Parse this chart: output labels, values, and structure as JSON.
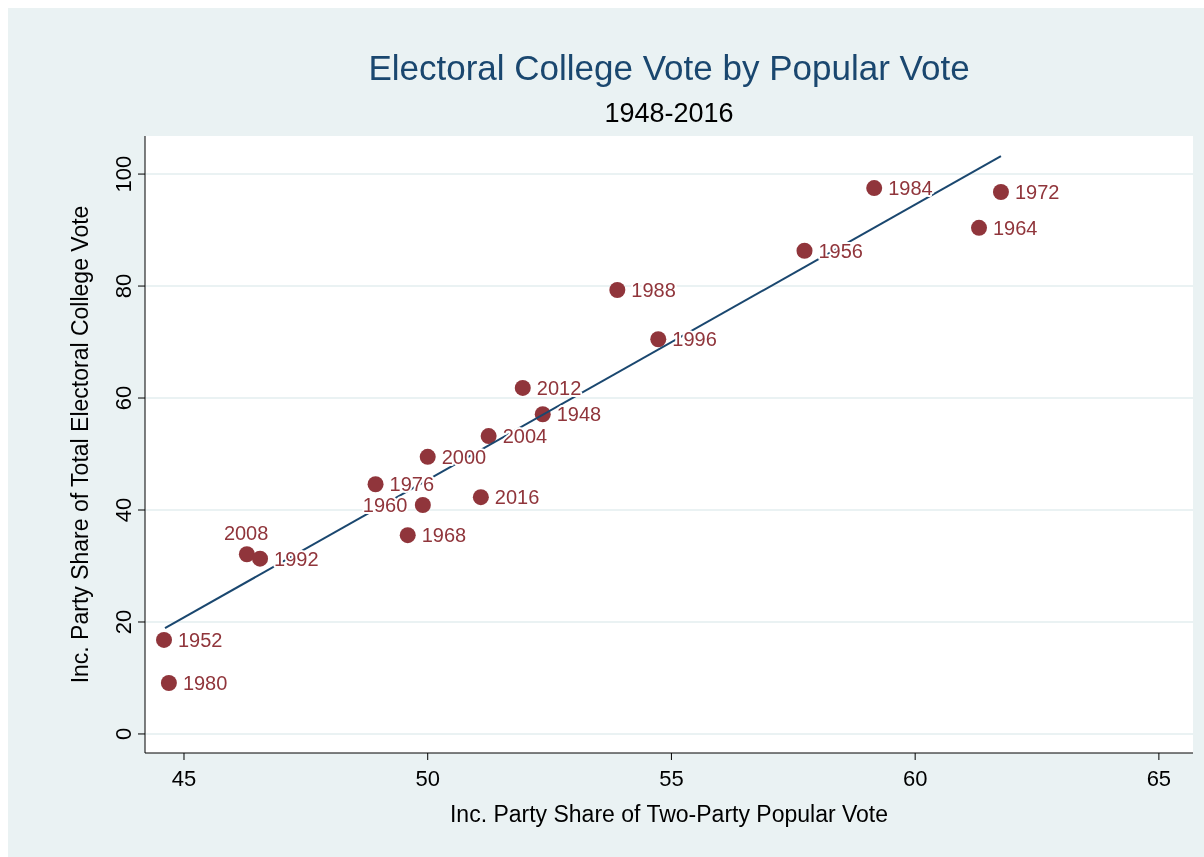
{
  "chart_data": {
    "type": "scatter",
    "title": "Electoral College Vote by Popular Vote",
    "subtitle": "1948-2016",
    "xlabel": "Inc. Party Share of Two-Party Popular Vote",
    "ylabel": "Inc. Party Share of Total Electoral College Vote",
    "xlim": [
      44.2,
      65.7
    ],
    "xticks": [
      45,
      50,
      55,
      60,
      65
    ],
    "ylim": [
      -3.4,
      106.8
    ],
    "yticks": [
      0,
      20,
      40,
      60,
      80,
      100
    ],
    "grid": "y",
    "marker": "circle",
    "series": [
      {
        "type": "scatter",
        "color": "#90353b",
        "x": [
          59.16,
          61.76,
          61.31,
          57.73,
          53.89,
          54.73,
          51.95,
          52.36,
          51.25,
          50.0,
          48.93,
          51.09,
          49.9,
          49.59,
          46.29,
          46.56,
          44.59,
          44.69
        ],
        "values": [
          97.5,
          96.8,
          90.4,
          86.3,
          79.3,
          70.5,
          61.8,
          57.1,
          53.2,
          49.5,
          44.6,
          42.3,
          40.9,
          35.5,
          32.1,
          31.3,
          16.8,
          9.1
        ]
      },
      {
        "type": "line",
        "color": "#1a476f",
        "line_style": "solid",
        "marker": "none",
        "x": [
          44.61,
          61.76
        ],
        "values": [
          18.9,
          103.2
        ]
      }
    ],
    "annotations": [
      {
        "text": "1984",
        "x": 59.16,
        "y": 97.5
      },
      {
        "text": "1972",
        "x": 61.76,
        "y": 96.8
      },
      {
        "text": "1964",
        "x": 61.31,
        "y": 90.4
      },
      {
        "text": "1956",
        "x": 57.73,
        "y": 86.3
      },
      {
        "text": "1988",
        "x": 53.89,
        "y": 79.3
      },
      {
        "text": "1996",
        "x": 54.73,
        "y": 70.5
      },
      {
        "text": "2012",
        "x": 51.95,
        "y": 61.8
      },
      {
        "text": "1948",
        "x": 52.36,
        "y": 57.1
      },
      {
        "text": "2004",
        "x": 51.25,
        "y": 53.2
      },
      {
        "text": "2000",
        "x": 50.0,
        "y": 49.5
      },
      {
        "text": "1976",
        "x": 48.93,
        "y": 44.6
      },
      {
        "text": "2016",
        "x": 51.09,
        "y": 42.3
      },
      {
        "text": "1960",
        "x": 49.9,
        "y": 40.9
      },
      {
        "text": "1968",
        "x": 49.59,
        "y": 35.5
      },
      {
        "text": "2008",
        "x": 46.29,
        "y": 32.1
      },
      {
        "text": "1992",
        "x": 46.56,
        "y": 31.3
      },
      {
        "text": "1952",
        "x": 44.59,
        "y": 16.8
      },
      {
        "text": "1980",
        "x": 44.69,
        "y": 9.1
      }
    ]
  }
}
